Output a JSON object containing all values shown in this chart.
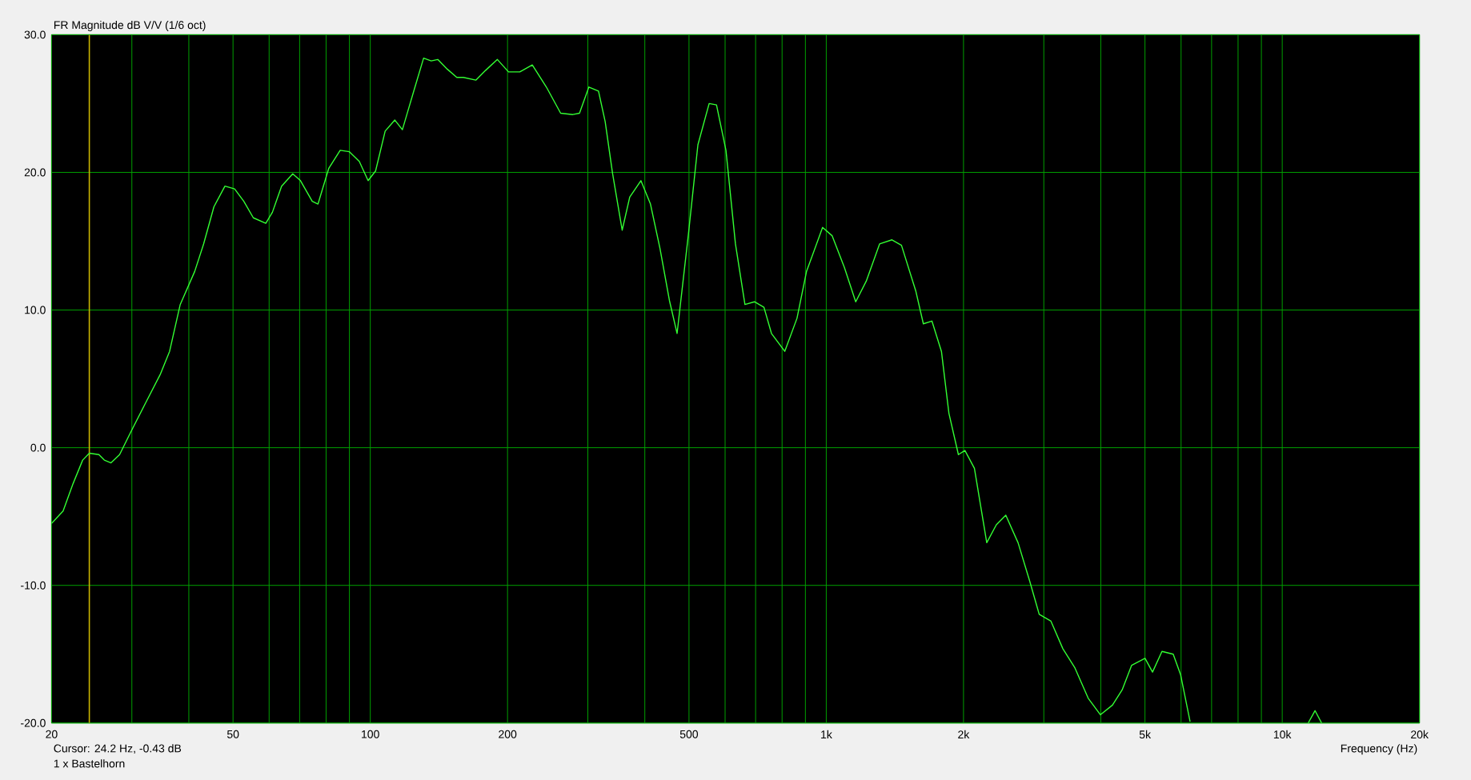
{
  "chart_data": {
    "type": "line",
    "title": "FR Magnitude dB V/V (1/6 oct)",
    "xlabel": "Frequency (Hz)",
    "log": "x",
    "grid": true,
    "xlim": [
      20,
      20000
    ],
    "ylim": [
      -20,
      30
    ],
    "xticks": [
      20,
      {
        "value": 30,
        "label": null
      },
      {
        "value": 40,
        "label": null
      },
      50,
      {
        "value": 60,
        "label": null
      },
      {
        "value": 70,
        "label": null
      },
      {
        "value": 80,
        "label": null
      },
      {
        "value": 90,
        "label": null
      },
      100,
      200,
      {
        "value": 300,
        "label": null
      },
      {
        "value": 400,
        "label": null
      },
      500,
      {
        "value": 600,
        "label": null
      },
      {
        "value": 700,
        "label": null
      },
      {
        "value": 800,
        "label": null
      },
      {
        "value": 900,
        "label": null
      },
      {
        "value": 1000,
        "label": "1k"
      },
      {
        "value": 2000,
        "label": "2k"
      },
      {
        "value": 3000,
        "label": null
      },
      {
        "value": 4000,
        "label": null
      },
      {
        "value": 5000,
        "label": "5k"
      },
      {
        "value": 6000,
        "label": null
      },
      {
        "value": 7000,
        "label": null
      },
      {
        "value": 8000,
        "label": null
      },
      {
        "value": 9000,
        "label": null
      },
      {
        "value": 10000,
        "label": "10k"
      },
      {
        "value": 20000,
        "label": "20k"
      }
    ],
    "yticks": [
      {
        "value": -20,
        "label": "-20.0"
      },
      {
        "value": -10,
        "label": "-10.0"
      },
      {
        "value": 0,
        "label": "0.0"
      },
      {
        "value": 10,
        "label": "10.0"
      },
      {
        "value": 20,
        "label": "20.0"
      },
      {
        "value": 30,
        "label": "30.0"
      }
    ],
    "ref_lines": [
      {
        "axis": "x",
        "value": 24.2,
        "color": "#c8b400"
      }
    ],
    "annotations": [
      "Cursor: 24.2 Hz, -0.43 dB",
      "1 x Bastelhorn"
    ],
    "series": [
      {
        "color": "#33ff33",
        "x": [
          20,
          21.2,
          22.3,
          23.4,
          24.2,
          25.4,
          26.1,
          27.0,
          28.2,
          29.9,
          32.1,
          34.6,
          36.3,
          38.3,
          41.2,
          43.1,
          45.4,
          48.0,
          50.4,
          52.8,
          55.4,
          59.0,
          61.0,
          63.9,
          67.6,
          70.3,
          74.6,
          76.8,
          81.1,
          85.9,
          90.0,
          94.6,
          98.9,
          102.7,
          107.8,
          113.2,
          117.6,
          124.8,
          130.9,
          136.0,
          140.6,
          147.5,
          154.8,
          160.0,
          170.4,
          178.9,
          190.0,
          201.0,
          212.8,
          226.6,
          243.3,
          261.5,
          278.1,
          287.6,
          301.6,
          316.6,
          327.4,
          340.0,
          356.8,
          370.7,
          392.2,
          411.6,
          431.7,
          452.9,
          470.8,
          498.5,
          523.0,
          553.6,
          574.5,
          602.6,
          632.2,
          663.3,
          695.9,
          730.1,
          758.3,
          810.9,
          862.6,
          905.1,
          981.6,
          1029.8,
          1095.8,
          1160.3,
          1223.8,
          1309,
          1393.5,
          1462,
          1571,
          1633,
          1705,
          1789,
          1858,
          1949,
          2014,
          2113,
          2249,
          2360,
          2476,
          2634,
          2794,
          2931,
          3110,
          3303,
          3511,
          3754,
          3992,
          4243,
          4455,
          4675,
          5001,
          5194,
          5448,
          5766,
          5987,
          6280,
          9000,
          11400,
          11800,
          12200
        ],
        "values": [
          -5.5,
          -4.6,
          -2.6,
          -0.9,
          -0.4,
          -0.5,
          -0.9,
          -1.1,
          -0.5,
          1.2,
          3.2,
          5.3,
          7.0,
          10.4,
          12.8,
          14.8,
          17.5,
          19.0,
          18.8,
          17.9,
          16.7,
          16.3,
          17.1,
          19.0,
          19.9,
          19.4,
          17.9,
          17.7,
          20.3,
          21.6,
          21.5,
          20.8,
          19.4,
          20.1,
          23.0,
          23.8,
          23.1,
          26.0,
          28.3,
          28.1,
          28.2,
          27.5,
          26.9,
          26.9,
          26.7,
          27.4,
          28.2,
          27.3,
          27.3,
          27.8,
          26.2,
          24.3,
          24.2,
          24.3,
          26.2,
          25.9,
          23.7,
          19.9,
          15.8,
          18.2,
          19.4,
          17.7,
          14.5,
          10.7,
          8.3,
          15.5,
          22.0,
          25.0,
          24.9,
          21.6,
          14.8,
          10.4,
          10.6,
          10.2,
          8.3,
          7.0,
          9.4,
          12.8,
          16.0,
          15.4,
          13.1,
          10.6,
          12.1,
          14.8,
          15.1,
          14.7,
          11.4,
          9.0,
          9.2,
          7.0,
          2.5,
          -0.5,
          -0.2,
          -1.5,
          -6.9,
          -5.6,
          -4.9,
          -6.9,
          -9.7,
          -12.1,
          -12.6,
          -14.6,
          -16.0,
          -18.2,
          -19.4,
          -18.7,
          -17.6,
          -15.8,
          -15.3,
          -16.3,
          -14.8,
          -15.0,
          -16.5,
          -19.9,
          null,
          -20,
          -19.1,
          -20
        ]
      }
    ]
  }
}
